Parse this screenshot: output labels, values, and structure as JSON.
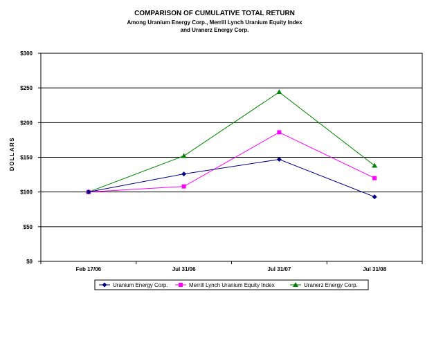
{
  "chart_data": {
    "type": "line",
    "title": "COMPARISON OF CUMULATIVE TOTAL RETURN",
    "subtitle_line1": "Among Uranium Energy Corp., Merrill Lynch Uranium Equity Index",
    "subtitle_line2": "and Uranerz Energy Corp.",
    "ylabel": "DOLLARS",
    "xlabel": "",
    "ylim": [
      0,
      300
    ],
    "y_ticks": [
      "$300",
      "$250",
      "$200",
      "$150",
      "$100",
      "$50",
      "$0"
    ],
    "categories": [
      "Feb 17/06",
      "Jul 31/06",
      "Jul 31/07",
      "Jul 31/08"
    ],
    "grid": true,
    "legend_position": "bottom",
    "series": [
      {
        "name": "Uranium Energy Corp.",
        "color": "#000080",
        "marker": "diamond",
        "values": [
          100,
          126,
          147,
          93
        ]
      },
      {
        "name": "Merrill Lynch Uranium Equity Index",
        "color": "#ff00ff",
        "marker": "square",
        "values": [
          100,
          108,
          186,
          120
        ]
      },
      {
        "name": "Uranerz Energy Corp.",
        "color": "#008000",
        "marker": "triangle",
        "values": [
          100,
          152,
          244,
          138
        ]
      }
    ]
  }
}
